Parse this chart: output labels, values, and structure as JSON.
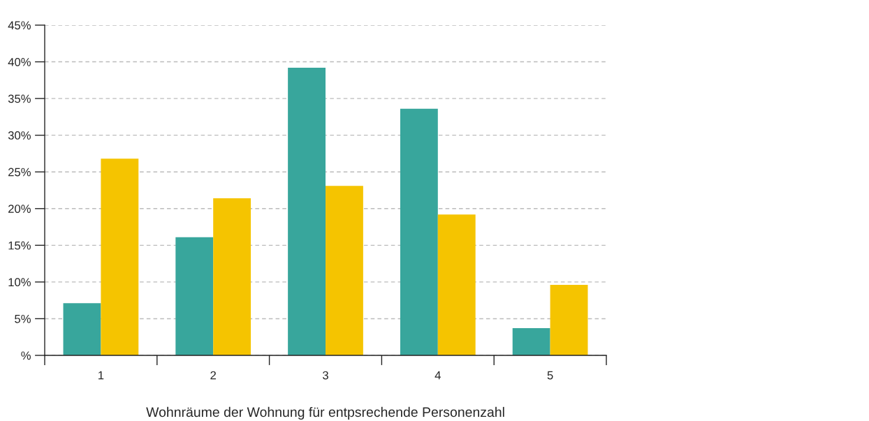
{
  "chart_data": {
    "type": "bar",
    "xlabel": "Wohnräume der Wohnung für entpsrechende Personenzahl",
    "categories": [
      "1",
      "2",
      "3",
      "4",
      "5"
    ],
    "series": [
      {
        "color": "#38a69c",
        "values": [
          7.1,
          16.1,
          39.2,
          33.6,
          3.7
        ]
      },
      {
        "color": "#f5c400",
        "values": [
          26.8,
          21.4,
          23.1,
          19.2,
          9.6
        ]
      }
    ],
    "ylim": [
      0,
      45
    ],
    "yticks": [
      {
        "value": 0,
        "label": "%"
      },
      {
        "value": 5,
        "label": "5%"
      },
      {
        "value": 10,
        "label": "10%"
      },
      {
        "value": 15,
        "label": "15%"
      },
      {
        "value": 20,
        "label": "20%"
      },
      {
        "value": 25,
        "label": "25%"
      },
      {
        "value": 30,
        "label": "30%"
      },
      {
        "value": 35,
        "label": "35%"
      },
      {
        "value": 40,
        "label": "40%"
      },
      {
        "value": 45,
        "label": "45%"
      }
    ],
    "grid": "y"
  }
}
